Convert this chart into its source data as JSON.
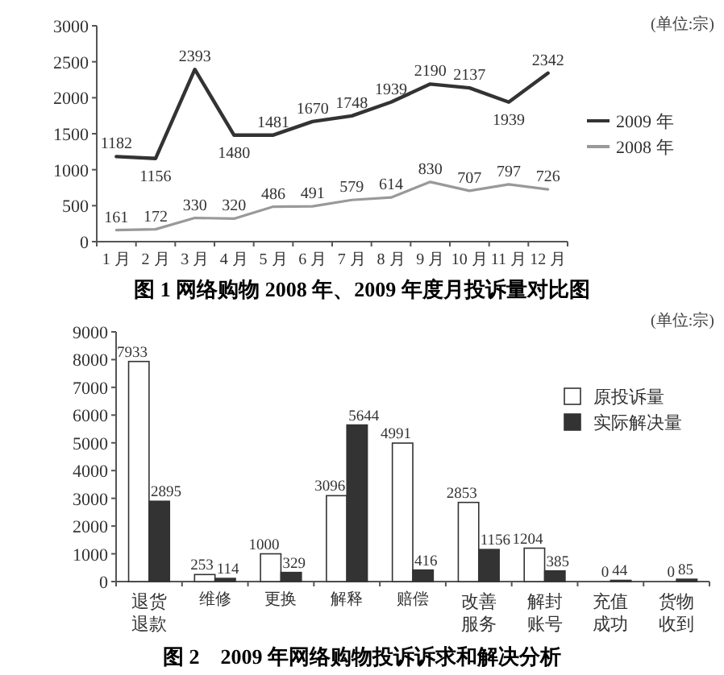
{
  "chart_data": [
    {
      "type": "line",
      "title": "图 1 网络购物 2008 年、2009 年度月投诉量对比图",
      "annotations": [
        "(单位:宗)"
      ],
      "categories": [
        "1 月",
        "2 月",
        "3 月",
        "4 月",
        "5 月",
        "6 月",
        "7 月",
        "8 月",
        "9 月",
        "10 月",
        "11 月",
        "12 月"
      ],
      "series": [
        {
          "name": "2009 年",
          "color": "#333333",
          "values": [
            1182,
            1156,
            2393,
            1480,
            1481,
            1670,
            1748,
            1939,
            2190,
            2137,
            1939,
            2342
          ]
        },
        {
          "name": "2008 年",
          "color": "#999999",
          "values": [
            161,
            172,
            330,
            320,
            486,
            491,
            579,
            614,
            830,
            707,
            797,
            726
          ]
        }
      ],
      "ylim": [
        0,
        3000
      ],
      "yticks": [
        0,
        500,
        1000,
        1500,
        2000,
        2500,
        3000
      ],
      "data_labels": true,
      "legend": "right",
      "grid": false
    },
    {
      "type": "bar",
      "title": "图 2　2009 年网络购物投诉诉求和解决分析",
      "annotations": [
        "(单位:宗)"
      ],
      "categories": [
        "退货退款",
        "维修",
        "更换",
        "解释",
        "赔偿",
        "改善服务",
        "解封账号",
        "充值成功",
        "货物收到"
      ],
      "series": [
        {
          "name": "原投诉量",
          "color": "#ffffff",
          "values": [
            7933,
            253,
            1000,
            3096,
            4991,
            2853,
            1204,
            0,
            0
          ]
        },
        {
          "name": "实际解决量",
          "color": "#333333",
          "values": [
            2895,
            114,
            329,
            5644,
            416,
            1156,
            385,
            44,
            85
          ]
        }
      ],
      "ylim": [
        0,
        9000
      ],
      "yticks": [
        0,
        1000,
        2000,
        3000,
        4000,
        5000,
        6000,
        7000,
        8000,
        9000
      ],
      "data_labels": true,
      "legend": "top right",
      "grid": false
    }
  ]
}
